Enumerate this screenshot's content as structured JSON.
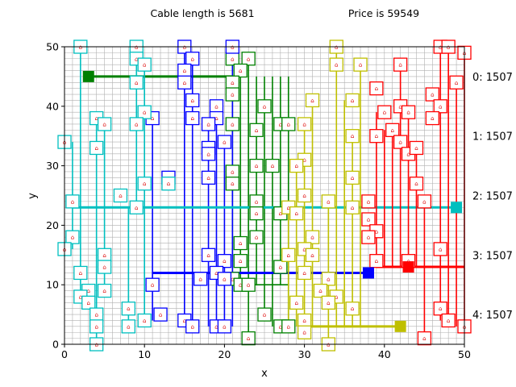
{
  "header": {
    "left_title": "Cable length is 5681",
    "right_title": "Price is 59549"
  },
  "chart_data": {
    "type": "scatter",
    "xlabel": "x",
    "ylabel": "y",
    "xlim": [
      0,
      50
    ],
    "ylim": [
      0,
      50
    ],
    "xticks": [
      "0",
      "10",
      "20",
      "30",
      "40",
      "50"
    ],
    "yticks": [
      "0",
      "10",
      "20",
      "30",
      "40",
      "50"
    ],
    "grid": true,
    "house_glyph": "⌂",
    "right_labels": [
      "0: 1507",
      "1: 1507",
      "2: 1507",
      "3: 1507",
      "4: 1507"
    ],
    "right_label_y": [
      45,
      35,
      25,
      15,
      5
    ],
    "series": [
      {
        "color": "#008000",
        "substation": [
          3,
          45
        ],
        "trunk": [
          [
            3,
            45
          ],
          [
            21,
            45
          ]
        ],
        "bus_y": 10,
        "bus_x": [
          21,
          28
        ],
        "verticals": [
          {
            "x": 21,
            "y": [
              10,
              45
            ]
          },
          {
            "x": 22,
            "y": [
              10,
              45
            ]
          },
          {
            "x": 23,
            "y": [
              1,
              48
            ]
          },
          {
            "x": 24,
            "y": [
              10,
              45
            ]
          },
          {
            "x": 25,
            "y": [
              5,
              45
            ]
          },
          {
            "x": 26,
            "y": [
              3,
              45
            ]
          },
          {
            "x": 27,
            "y": [
              10,
              45
            ]
          },
          {
            "x": 28,
            "y": [
              3,
              45
            ]
          }
        ],
        "houses": [
          [
            21,
            48
          ],
          [
            23,
            48
          ],
          [
            22,
            46
          ],
          [
            21,
            44
          ],
          [
            21,
            42
          ],
          [
            25,
            40
          ],
          [
            27,
            37
          ],
          [
            21,
            37
          ],
          [
            24,
            36
          ],
          [
            28,
            37
          ],
          [
            24,
            30
          ],
          [
            26,
            30
          ],
          [
            21,
            29
          ],
          [
            21,
            27
          ],
          [
            24,
            24
          ],
          [
            24,
            22
          ],
          [
            27,
            22
          ],
          [
            24,
            18
          ],
          [
            22,
            17
          ],
          [
            22,
            14
          ],
          [
            27,
            13
          ],
          [
            21,
            11
          ],
          [
            22,
            10
          ],
          [
            23,
            10
          ],
          [
            25,
            5
          ],
          [
            27,
            3
          ],
          [
            28,
            3
          ],
          [
            23,
            1
          ]
        ]
      },
      {
        "color": "#0000ff",
        "substation": [
          38,
          12
        ],
        "trunk": [
          [
            11,
            12
          ],
          [
            38,
            12
          ]
        ],
        "bus_y": 12,
        "bus_x": [
          11,
          38
        ],
        "verticals": [
          {
            "x": 11,
            "y": [
              4,
              38
            ]
          },
          {
            "x": 15,
            "y": [
              4,
              50
            ]
          },
          {
            "x": 16,
            "y": [
              3,
              48
            ]
          },
          {
            "x": 18,
            "y": [
              3,
              37
            ]
          },
          {
            "x": 19,
            "y": [
              3,
              40
            ]
          },
          {
            "x": 20,
            "y": [
              3,
              34
            ]
          },
          {
            "x": 21,
            "y": [
              3,
              50
            ]
          }
        ],
        "houses": [
          [
            15,
            50
          ],
          [
            21,
            50
          ],
          [
            16,
            48
          ],
          [
            15,
            46
          ],
          [
            15,
            44
          ],
          [
            16,
            41
          ],
          [
            19,
            40
          ],
          [
            11,
            38
          ],
          [
            16,
            38
          ],
          [
            19,
            38
          ],
          [
            18,
            37
          ],
          [
            20,
            34
          ],
          [
            18,
            33
          ],
          [
            18,
            32
          ],
          [
            18,
            28
          ],
          [
            13,
            28
          ],
          [
            18,
            15
          ],
          [
            20,
            14
          ],
          [
            19,
            12
          ],
          [
            20,
            11
          ],
          [
            17,
            11
          ],
          [
            11,
            10
          ],
          [
            12,
            5
          ],
          [
            15,
            4
          ],
          [
            16,
            3
          ],
          [
            19,
            3
          ],
          [
            20,
            3
          ]
        ]
      },
      {
        "color": "#00bfbf",
        "substation": [
          49,
          23
        ],
        "trunk": [
          [
            1,
            23
          ],
          [
            49,
            23
          ]
        ],
        "bus_y": 23,
        "bus_x": [
          1,
          49
        ],
        "verticals": [
          {
            "x": 1,
            "y": [
              16,
              34
            ]
          },
          {
            "x": 2,
            "y": [
              8,
              50
            ]
          },
          {
            "x": 4,
            "y": [
              0,
              38
            ]
          },
          {
            "x": 5,
            "y": [
              9,
              37
            ]
          },
          {
            "x": 8,
            "y": [
              3,
              23
            ]
          },
          {
            "x": 9,
            "y": [
              23,
              50
            ]
          },
          {
            "x": 10,
            "y": [
              4,
              48
            ]
          }
        ],
        "houses": [
          [
            2,
            50
          ],
          [
            9,
            50
          ],
          [
            9,
            48
          ],
          [
            10,
            47
          ],
          [
            9,
            44
          ],
          [
            10,
            39
          ],
          [
            4,
            38
          ],
          [
            5,
            37
          ],
          [
            9,
            37
          ],
          [
            4,
            33
          ],
          [
            0,
            34
          ],
          [
            7,
            25
          ],
          [
            10,
            27
          ],
          [
            13,
            27
          ],
          [
            1,
            24
          ],
          [
            9,
            23
          ],
          [
            1,
            18
          ],
          [
            0,
            16
          ],
          [
            5,
            15
          ],
          [
            5,
            13
          ],
          [
            2,
            12
          ],
          [
            3,
            9
          ],
          [
            5,
            9
          ],
          [
            2,
            8
          ],
          [
            3,
            7
          ],
          [
            8,
            6
          ],
          [
            4,
            5
          ],
          [
            4,
            3
          ],
          [
            8,
            3
          ],
          [
            10,
            4
          ],
          [
            4,
            0
          ]
        ]
      },
      {
        "color": "#ff0000",
        "substation": [
          43,
          13
        ],
        "trunk": [
          [
            39,
            13
          ],
          [
            50,
            13
          ]
        ],
        "bus_y": 13,
        "bus_x": [
          39,
          50
        ],
        "verticals": [
          {
            "x": 39,
            "y": [
              13,
              39
            ]
          },
          {
            "x": 40,
            "y": [
              13,
              36
            ]
          },
          {
            "x": 41,
            "y": [
              13,
              37
            ]
          },
          {
            "x": 42,
            "y": [
              13,
              47
            ]
          },
          {
            "x": 43,
            "y": [
              13,
              39
            ]
          },
          {
            "x": 44,
            "y": [
              13,
              33
            ]
          },
          {
            "x": 45,
            "y": [
              1,
              24
            ]
          },
          {
            "x": 47,
            "y": [
              4,
              50
            ]
          },
          {
            "x": 48,
            "y": [
              4,
              50
            ]
          },
          {
            "x": 49,
            "y": [
              3,
              44
            ]
          },
          {
            "x": 50,
            "y": [
              3,
              49
            ]
          }
        ],
        "houses": [
          [
            47,
            50
          ],
          [
            48,
            50
          ],
          [
            50,
            49
          ],
          [
            42,
            47
          ],
          [
            49,
            44
          ],
          [
            39,
            43
          ],
          [
            46,
            42
          ],
          [
            42,
            40
          ],
          [
            40,
            39
          ],
          [
            43,
            39
          ],
          [
            47,
            40
          ],
          [
            46,
            38
          ],
          [
            41,
            36
          ],
          [
            42,
            34
          ],
          [
            43,
            32
          ],
          [
            44,
            33
          ],
          [
            39,
            35
          ],
          [
            44,
            27
          ],
          [
            45,
            24
          ],
          [
            38,
            24
          ],
          [
            38,
            21
          ],
          [
            39,
            19
          ],
          [
            38,
            18
          ],
          [
            47,
            16
          ],
          [
            39,
            14
          ],
          [
            43,
            14
          ],
          [
            47,
            6
          ],
          [
            48,
            4
          ],
          [
            50,
            3
          ],
          [
            45,
            1
          ]
        ]
      },
      {
        "color": "#bfbf00",
        "substation": [
          42,
          3
        ],
        "trunk": [
          [
            30,
            3
          ],
          [
            42,
            3
          ]
        ],
        "bus_y": 3,
        "bus_x": [
          30,
          42
        ],
        "verticals": [
          {
            "x": 28,
            "y": [
              3,
              23
            ]
          },
          {
            "x": 29,
            "y": [
              3,
              30
            ]
          },
          {
            "x": 30,
            "y": [
              2,
              37
            ]
          },
          {
            "x": 31,
            "y": [
              3,
              41
            ]
          },
          {
            "x": 33,
            "y": [
              0,
              24
            ]
          },
          {
            "x": 34,
            "y": [
              3,
              50
            ]
          },
          {
            "x": 35,
            "y": [
              3,
              41
            ]
          },
          {
            "x": 36,
            "y": [
              3,
              35
            ]
          },
          {
            "x": 37,
            "y": [
              3,
              47
            ]
          }
        ],
        "houses": [
          [
            34,
            50
          ],
          [
            34,
            47
          ],
          [
            37,
            47
          ],
          [
            31,
            41
          ],
          [
            36,
            41
          ],
          [
            30,
            37
          ],
          [
            36,
            35
          ],
          [
            30,
            31
          ],
          [
            29,
            30
          ],
          [
            36,
            28
          ],
          [
            30,
            25
          ],
          [
            33,
            24
          ],
          [
            28,
            23
          ],
          [
            29,
            22
          ],
          [
            36,
            23
          ],
          [
            31,
            18
          ],
          [
            30,
            16
          ],
          [
            31,
            15
          ],
          [
            28,
            15
          ],
          [
            30,
            12
          ],
          [
            33,
            11
          ],
          [
            32,
            9
          ],
          [
            34,
            8
          ],
          [
            33,
            7
          ],
          [
            29,
            7
          ],
          [
            30,
            4
          ],
          [
            36,
            6
          ],
          [
            30,
            2
          ],
          [
            33,
            0
          ]
        ]
      }
    ]
  }
}
